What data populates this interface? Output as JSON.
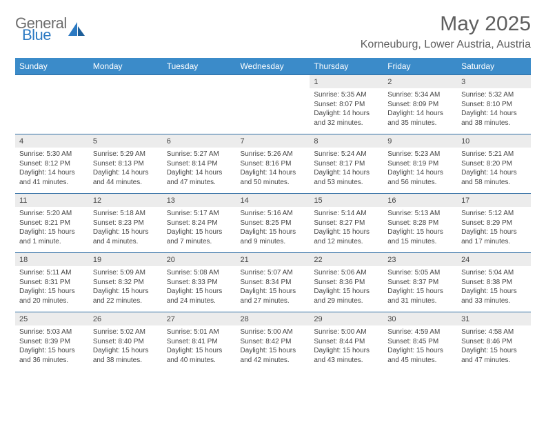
{
  "brand": {
    "part1": "General",
    "part2": "Blue"
  },
  "title": "May 2025",
  "location": "Korneuburg, Lower Austria, Austria",
  "colors": {
    "header_bg": "#3b8bc9",
    "header_text": "#ffffff",
    "daynum_bg": "#ececec",
    "border": "#2f6da3",
    "text": "#444444",
    "title": "#5f5f5f",
    "brand_gray": "#6d6d6d",
    "brand_blue": "#2b79c2"
  },
  "weekdays": [
    "Sunday",
    "Monday",
    "Tuesday",
    "Wednesday",
    "Thursday",
    "Friday",
    "Saturday"
  ],
  "weeks": [
    [
      null,
      null,
      null,
      null,
      {
        "n": "1",
        "sr": "Sunrise: 5:35 AM",
        "ss": "Sunset: 8:07 PM",
        "d1": "Daylight: 14 hours",
        "d2": "and 32 minutes."
      },
      {
        "n": "2",
        "sr": "Sunrise: 5:34 AM",
        "ss": "Sunset: 8:09 PM",
        "d1": "Daylight: 14 hours",
        "d2": "and 35 minutes."
      },
      {
        "n": "3",
        "sr": "Sunrise: 5:32 AM",
        "ss": "Sunset: 8:10 PM",
        "d1": "Daylight: 14 hours",
        "d2": "and 38 minutes."
      }
    ],
    [
      {
        "n": "4",
        "sr": "Sunrise: 5:30 AM",
        "ss": "Sunset: 8:12 PM",
        "d1": "Daylight: 14 hours",
        "d2": "and 41 minutes."
      },
      {
        "n": "5",
        "sr": "Sunrise: 5:29 AM",
        "ss": "Sunset: 8:13 PM",
        "d1": "Daylight: 14 hours",
        "d2": "and 44 minutes."
      },
      {
        "n": "6",
        "sr": "Sunrise: 5:27 AM",
        "ss": "Sunset: 8:14 PM",
        "d1": "Daylight: 14 hours",
        "d2": "and 47 minutes."
      },
      {
        "n": "7",
        "sr": "Sunrise: 5:26 AM",
        "ss": "Sunset: 8:16 PM",
        "d1": "Daylight: 14 hours",
        "d2": "and 50 minutes."
      },
      {
        "n": "8",
        "sr": "Sunrise: 5:24 AM",
        "ss": "Sunset: 8:17 PM",
        "d1": "Daylight: 14 hours",
        "d2": "and 53 minutes."
      },
      {
        "n": "9",
        "sr": "Sunrise: 5:23 AM",
        "ss": "Sunset: 8:19 PM",
        "d1": "Daylight: 14 hours",
        "d2": "and 56 minutes."
      },
      {
        "n": "10",
        "sr": "Sunrise: 5:21 AM",
        "ss": "Sunset: 8:20 PM",
        "d1": "Daylight: 14 hours",
        "d2": "and 58 minutes."
      }
    ],
    [
      {
        "n": "11",
        "sr": "Sunrise: 5:20 AM",
        "ss": "Sunset: 8:21 PM",
        "d1": "Daylight: 15 hours",
        "d2": "and 1 minute."
      },
      {
        "n": "12",
        "sr": "Sunrise: 5:18 AM",
        "ss": "Sunset: 8:23 PM",
        "d1": "Daylight: 15 hours",
        "d2": "and 4 minutes."
      },
      {
        "n": "13",
        "sr": "Sunrise: 5:17 AM",
        "ss": "Sunset: 8:24 PM",
        "d1": "Daylight: 15 hours",
        "d2": "and 7 minutes."
      },
      {
        "n": "14",
        "sr": "Sunrise: 5:16 AM",
        "ss": "Sunset: 8:25 PM",
        "d1": "Daylight: 15 hours",
        "d2": "and 9 minutes."
      },
      {
        "n": "15",
        "sr": "Sunrise: 5:14 AM",
        "ss": "Sunset: 8:27 PM",
        "d1": "Daylight: 15 hours",
        "d2": "and 12 minutes."
      },
      {
        "n": "16",
        "sr": "Sunrise: 5:13 AM",
        "ss": "Sunset: 8:28 PM",
        "d1": "Daylight: 15 hours",
        "d2": "and 15 minutes."
      },
      {
        "n": "17",
        "sr": "Sunrise: 5:12 AM",
        "ss": "Sunset: 8:29 PM",
        "d1": "Daylight: 15 hours",
        "d2": "and 17 minutes."
      }
    ],
    [
      {
        "n": "18",
        "sr": "Sunrise: 5:11 AM",
        "ss": "Sunset: 8:31 PM",
        "d1": "Daylight: 15 hours",
        "d2": "and 20 minutes."
      },
      {
        "n": "19",
        "sr": "Sunrise: 5:09 AM",
        "ss": "Sunset: 8:32 PM",
        "d1": "Daylight: 15 hours",
        "d2": "and 22 minutes."
      },
      {
        "n": "20",
        "sr": "Sunrise: 5:08 AM",
        "ss": "Sunset: 8:33 PM",
        "d1": "Daylight: 15 hours",
        "d2": "and 24 minutes."
      },
      {
        "n": "21",
        "sr": "Sunrise: 5:07 AM",
        "ss": "Sunset: 8:34 PM",
        "d1": "Daylight: 15 hours",
        "d2": "and 27 minutes."
      },
      {
        "n": "22",
        "sr": "Sunrise: 5:06 AM",
        "ss": "Sunset: 8:36 PM",
        "d1": "Daylight: 15 hours",
        "d2": "and 29 minutes."
      },
      {
        "n": "23",
        "sr": "Sunrise: 5:05 AM",
        "ss": "Sunset: 8:37 PM",
        "d1": "Daylight: 15 hours",
        "d2": "and 31 minutes."
      },
      {
        "n": "24",
        "sr": "Sunrise: 5:04 AM",
        "ss": "Sunset: 8:38 PM",
        "d1": "Daylight: 15 hours",
        "d2": "and 33 minutes."
      }
    ],
    [
      {
        "n": "25",
        "sr": "Sunrise: 5:03 AM",
        "ss": "Sunset: 8:39 PM",
        "d1": "Daylight: 15 hours",
        "d2": "and 36 minutes."
      },
      {
        "n": "26",
        "sr": "Sunrise: 5:02 AM",
        "ss": "Sunset: 8:40 PM",
        "d1": "Daylight: 15 hours",
        "d2": "and 38 minutes."
      },
      {
        "n": "27",
        "sr": "Sunrise: 5:01 AM",
        "ss": "Sunset: 8:41 PM",
        "d1": "Daylight: 15 hours",
        "d2": "and 40 minutes."
      },
      {
        "n": "28",
        "sr": "Sunrise: 5:00 AM",
        "ss": "Sunset: 8:42 PM",
        "d1": "Daylight: 15 hours",
        "d2": "and 42 minutes."
      },
      {
        "n": "29",
        "sr": "Sunrise: 5:00 AM",
        "ss": "Sunset: 8:44 PM",
        "d1": "Daylight: 15 hours",
        "d2": "and 43 minutes."
      },
      {
        "n": "30",
        "sr": "Sunrise: 4:59 AM",
        "ss": "Sunset: 8:45 PM",
        "d1": "Daylight: 15 hours",
        "d2": "and 45 minutes."
      },
      {
        "n": "31",
        "sr": "Sunrise: 4:58 AM",
        "ss": "Sunset: 8:46 PM",
        "d1": "Daylight: 15 hours",
        "d2": "and 47 minutes."
      }
    ]
  ]
}
